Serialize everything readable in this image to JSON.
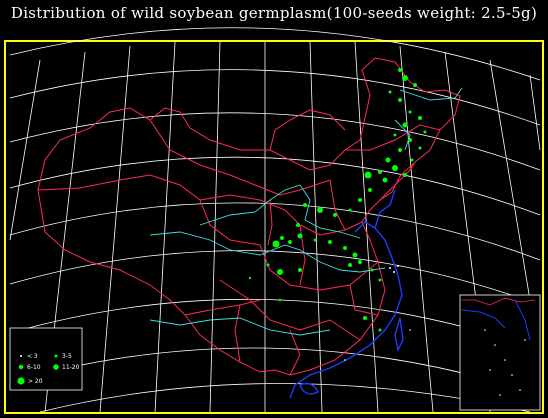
{
  "title": "Distribution  of  wild  soybean  germplasm(100-seeds  weight: 2.5-5g)",
  "colors": {
    "background": "#000000",
    "frame": "#ffff00",
    "graticule": "#ffffff",
    "province_borders": "#ff2a55",
    "rivers": "#40e0e0",
    "coast": "#1a3cff",
    "points": "#00ff00"
  },
  "legend": [
    {
      "label": "< 3",
      "size_rank": 1
    },
    {
      "label": "3-5",
      "size_rank": 2
    },
    {
      "label": "6-10",
      "size_rank": 3
    },
    {
      "label": "11-20",
      "size_rank": 4
    },
    {
      "label": "> 20",
      "size_rank": 5
    }
  ]
}
